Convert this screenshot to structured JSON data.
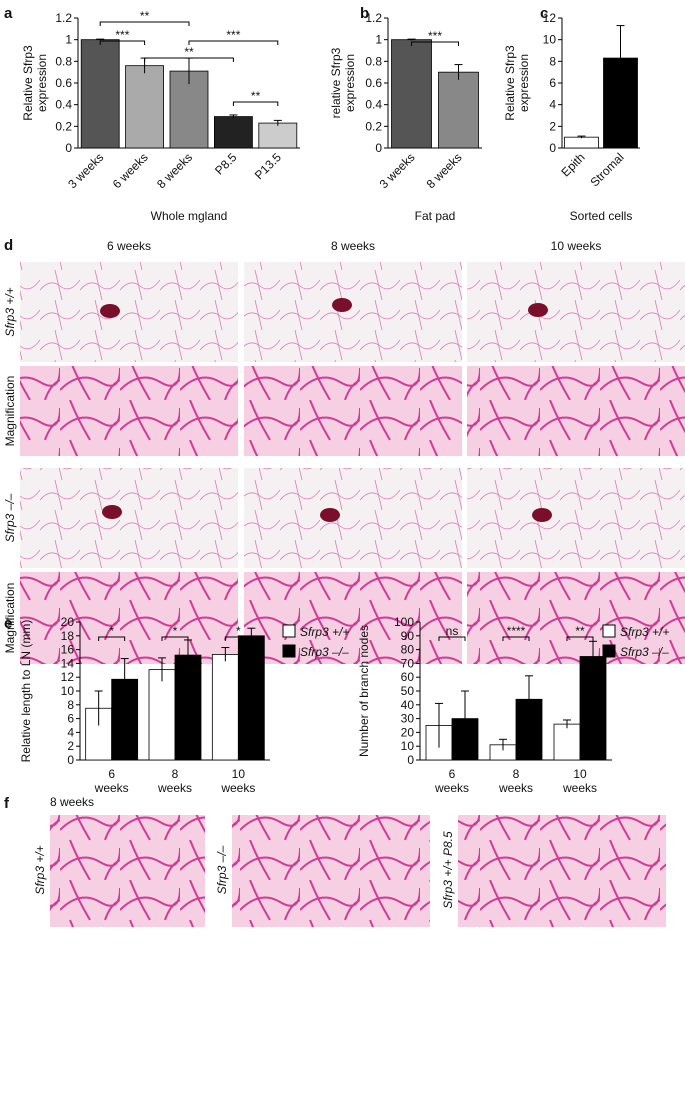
{
  "panel_labels": [
    "a",
    "b",
    "c",
    "d",
    "e",
    "f"
  ],
  "chart_data": [
    {
      "type": "bar",
      "ylabel": "Relative Sfrp3 expression",
      "xlabel": "Whole mgland",
      "categories": [
        "3 weeks",
        "6 weeks",
        "8 weeks",
        "P8.5",
        "P13.5"
      ],
      "values": [
        1,
        0.76,
        0.71,
        0.29,
        0.23
      ],
      "errors": [
        0.005,
        0.07,
        0.12,
        0.015,
        0.025
      ],
      "colors": [
        "#555555",
        "#aaaaaa",
        "#888888",
        "#222222",
        "#cccccc"
      ],
      "ylim": [
        0,
        1.2
      ],
      "yticks": [
        0,
        0.2,
        0.4,
        0.6,
        0.8,
        1,
        1.2
      ],
      "annotations": [
        {
          "text": "**",
          "from": 0,
          "to": 2
        },
        {
          "text": "***",
          "from": 0,
          "to": 1
        },
        {
          "text": "***",
          "from": 2,
          "to": 4
        },
        {
          "text": "**",
          "from": 1,
          "to": 3
        },
        {
          "text": "**",
          "from": 3,
          "to": 4
        }
      ]
    },
    {
      "type": "bar",
      "ylabel": "relative Sfrp3 expression",
      "xlabel": "Fat pad",
      "categories": [
        "3 weeks",
        "8 weeks"
      ],
      "values": [
        1,
        0.7
      ],
      "errors": [
        0.005,
        0.07
      ],
      "colors": [
        "#555555",
        "#888888"
      ],
      "ylim": [
        0,
        1.2
      ],
      "yticks": [
        0,
        0.2,
        0.4,
        0.6,
        0.8,
        1,
        1.2
      ],
      "annotations": [
        {
          "text": "***",
          "from": 0,
          "to": 1
        }
      ]
    },
    {
      "type": "bar",
      "ylabel": "Relative Sfrp3 expression",
      "xlabel": "Sorted cells",
      "categories": [
        "Epith",
        "Stromal"
      ],
      "values": [
        1,
        8.3
      ],
      "errors": [
        0.1,
        3
      ],
      "colors": [
        "#ffffff",
        "#000000"
      ],
      "ylim": [
        0,
        12
      ],
      "yticks": [
        0,
        2,
        4,
        6,
        8,
        10,
        12
      ],
      "annotations": []
    },
    {
      "type": "grouped_bar",
      "ylabel": "Relative length to LN (mm)",
      "categories": [
        "6 weeks",
        "8 weeks",
        "10 weeks"
      ],
      "series": [
        {
          "name": "Sfrp3 +/+",
          "color": "#ffffff",
          "values": [
            7.5,
            13.1,
            15.3
          ],
          "errors": [
            2.5,
            1.7,
            1.0
          ]
        },
        {
          "name": "Sfrp3 –/–",
          "color": "#000000",
          "values": [
            11.7,
            15.2,
            18
          ],
          "errors": [
            3,
            2.2,
            1.1
          ]
        }
      ],
      "ylim": [
        0,
        20
      ],
      "yticks": [
        0,
        2,
        4,
        6,
        8,
        10,
        12,
        14,
        16,
        18,
        20
      ],
      "annotations": [
        {
          "text": "*",
          "from": 0,
          "to": 0
        },
        {
          "text": "*",
          "from": 1,
          "to": 1
        },
        {
          "text": "*",
          "from": 2,
          "to": 2
        }
      ]
    },
    {
      "type": "grouped_bar",
      "ylabel": "Number of branch nodes",
      "categories": [
        "6 weeks",
        "8 weeks",
        "10 weeks"
      ],
      "series": [
        {
          "name": "Sfrp3 +/+",
          "color": "#ffffff",
          "values": [
            25,
            11,
            26
          ],
          "errors": [
            16,
            4,
            3
          ]
        },
        {
          "name": "Sfrp3 –/–",
          "color": "#000000",
          "values": [
            30,
            44,
            75
          ],
          "errors": [
            20,
            17,
            11
          ]
        }
      ],
      "ylim": [
        0,
        100
      ],
      "yticks": [
        0,
        10,
        20,
        30,
        40,
        50,
        60,
        70,
        80,
        90,
        100
      ],
      "annotations": [
        {
          "text": "ns",
          "from": 0,
          "to": 0
        },
        {
          "text": "****",
          "from": 1,
          "to": 1
        },
        {
          "text": "**",
          "from": 2,
          "to": 2
        }
      ]
    }
  ],
  "image_panels": {
    "d": {
      "columns": [
        "6 weeks",
        "8 weeks",
        "10 weeks"
      ],
      "rows": [
        "Sfrp3 +/+",
        "Magnification",
        "Sfrp3 –/–",
        "Magnification"
      ]
    },
    "f": {
      "title": "8 weeks",
      "labels": [
        "Sfrp3 +/+",
        "Sfrp3 –/–",
        "Sfrp3 +/+ P8.5"
      ]
    }
  }
}
